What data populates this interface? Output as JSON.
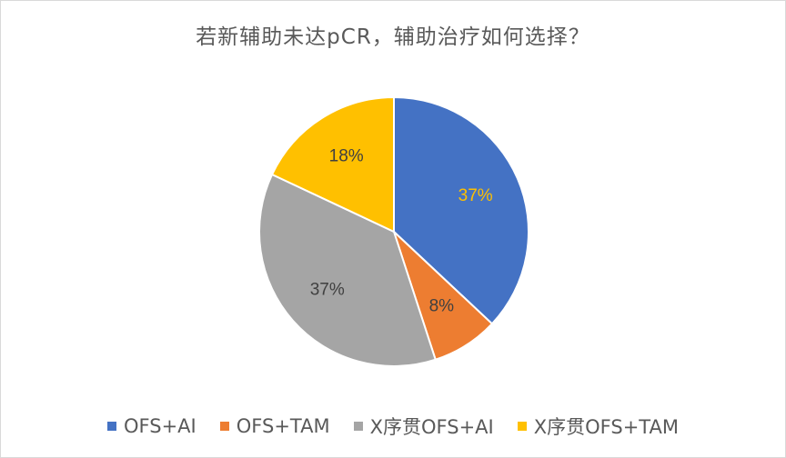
{
  "chart_data": {
    "type": "pie",
    "title": "若新辅助未达pCR，辅助治疗如何选择？",
    "categories": [
      "OFS+AI",
      "OFS+TAM",
      "X序贯OFS+AI",
      "X序贯OFS+TAM"
    ],
    "values": [
      37,
      8,
      37,
      18
    ],
    "labels": [
      "37%",
      "8%",
      "37%",
      "18%"
    ],
    "colors": [
      "#4472C4",
      "#ED7D31",
      "#A5A5A5",
      "#FFC000"
    ],
    "label_colors": [
      "#FFC000",
      "#404040",
      "#404040",
      "#404040"
    ],
    "legend_position": "bottom"
  }
}
